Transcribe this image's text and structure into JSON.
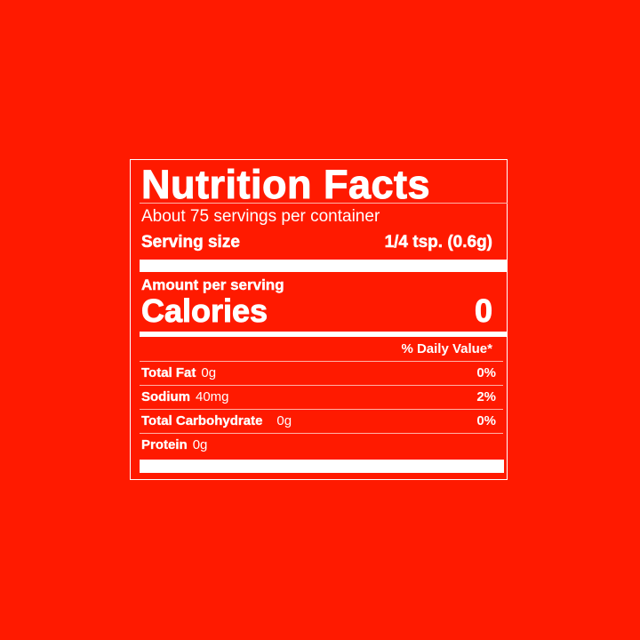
{
  "title": "Nutrition Facts",
  "servings_per_container": "About 75 servings per container",
  "serving_size_label": "Serving size",
  "serving_size_value": "1/4 tsp. (0.6g)",
  "amount_per_serving": "Amount per serving",
  "calories_label": "Calories",
  "calories_value": "0",
  "daily_value_header": "% Daily Value*",
  "nutrients": [
    {
      "name": "Total Fat",
      "amount": "0g",
      "dv": "0%"
    },
    {
      "name": "Sodium",
      "amount": "40mg",
      "dv": "2%"
    },
    {
      "name": "Total Carbohydrate",
      "amount": "0g",
      "dv": "0%"
    },
    {
      "name": "Protein",
      "amount": "0g",
      "dv": ""
    }
  ],
  "colors": {
    "background": "#ff1a00",
    "text": "#ffffff"
  }
}
